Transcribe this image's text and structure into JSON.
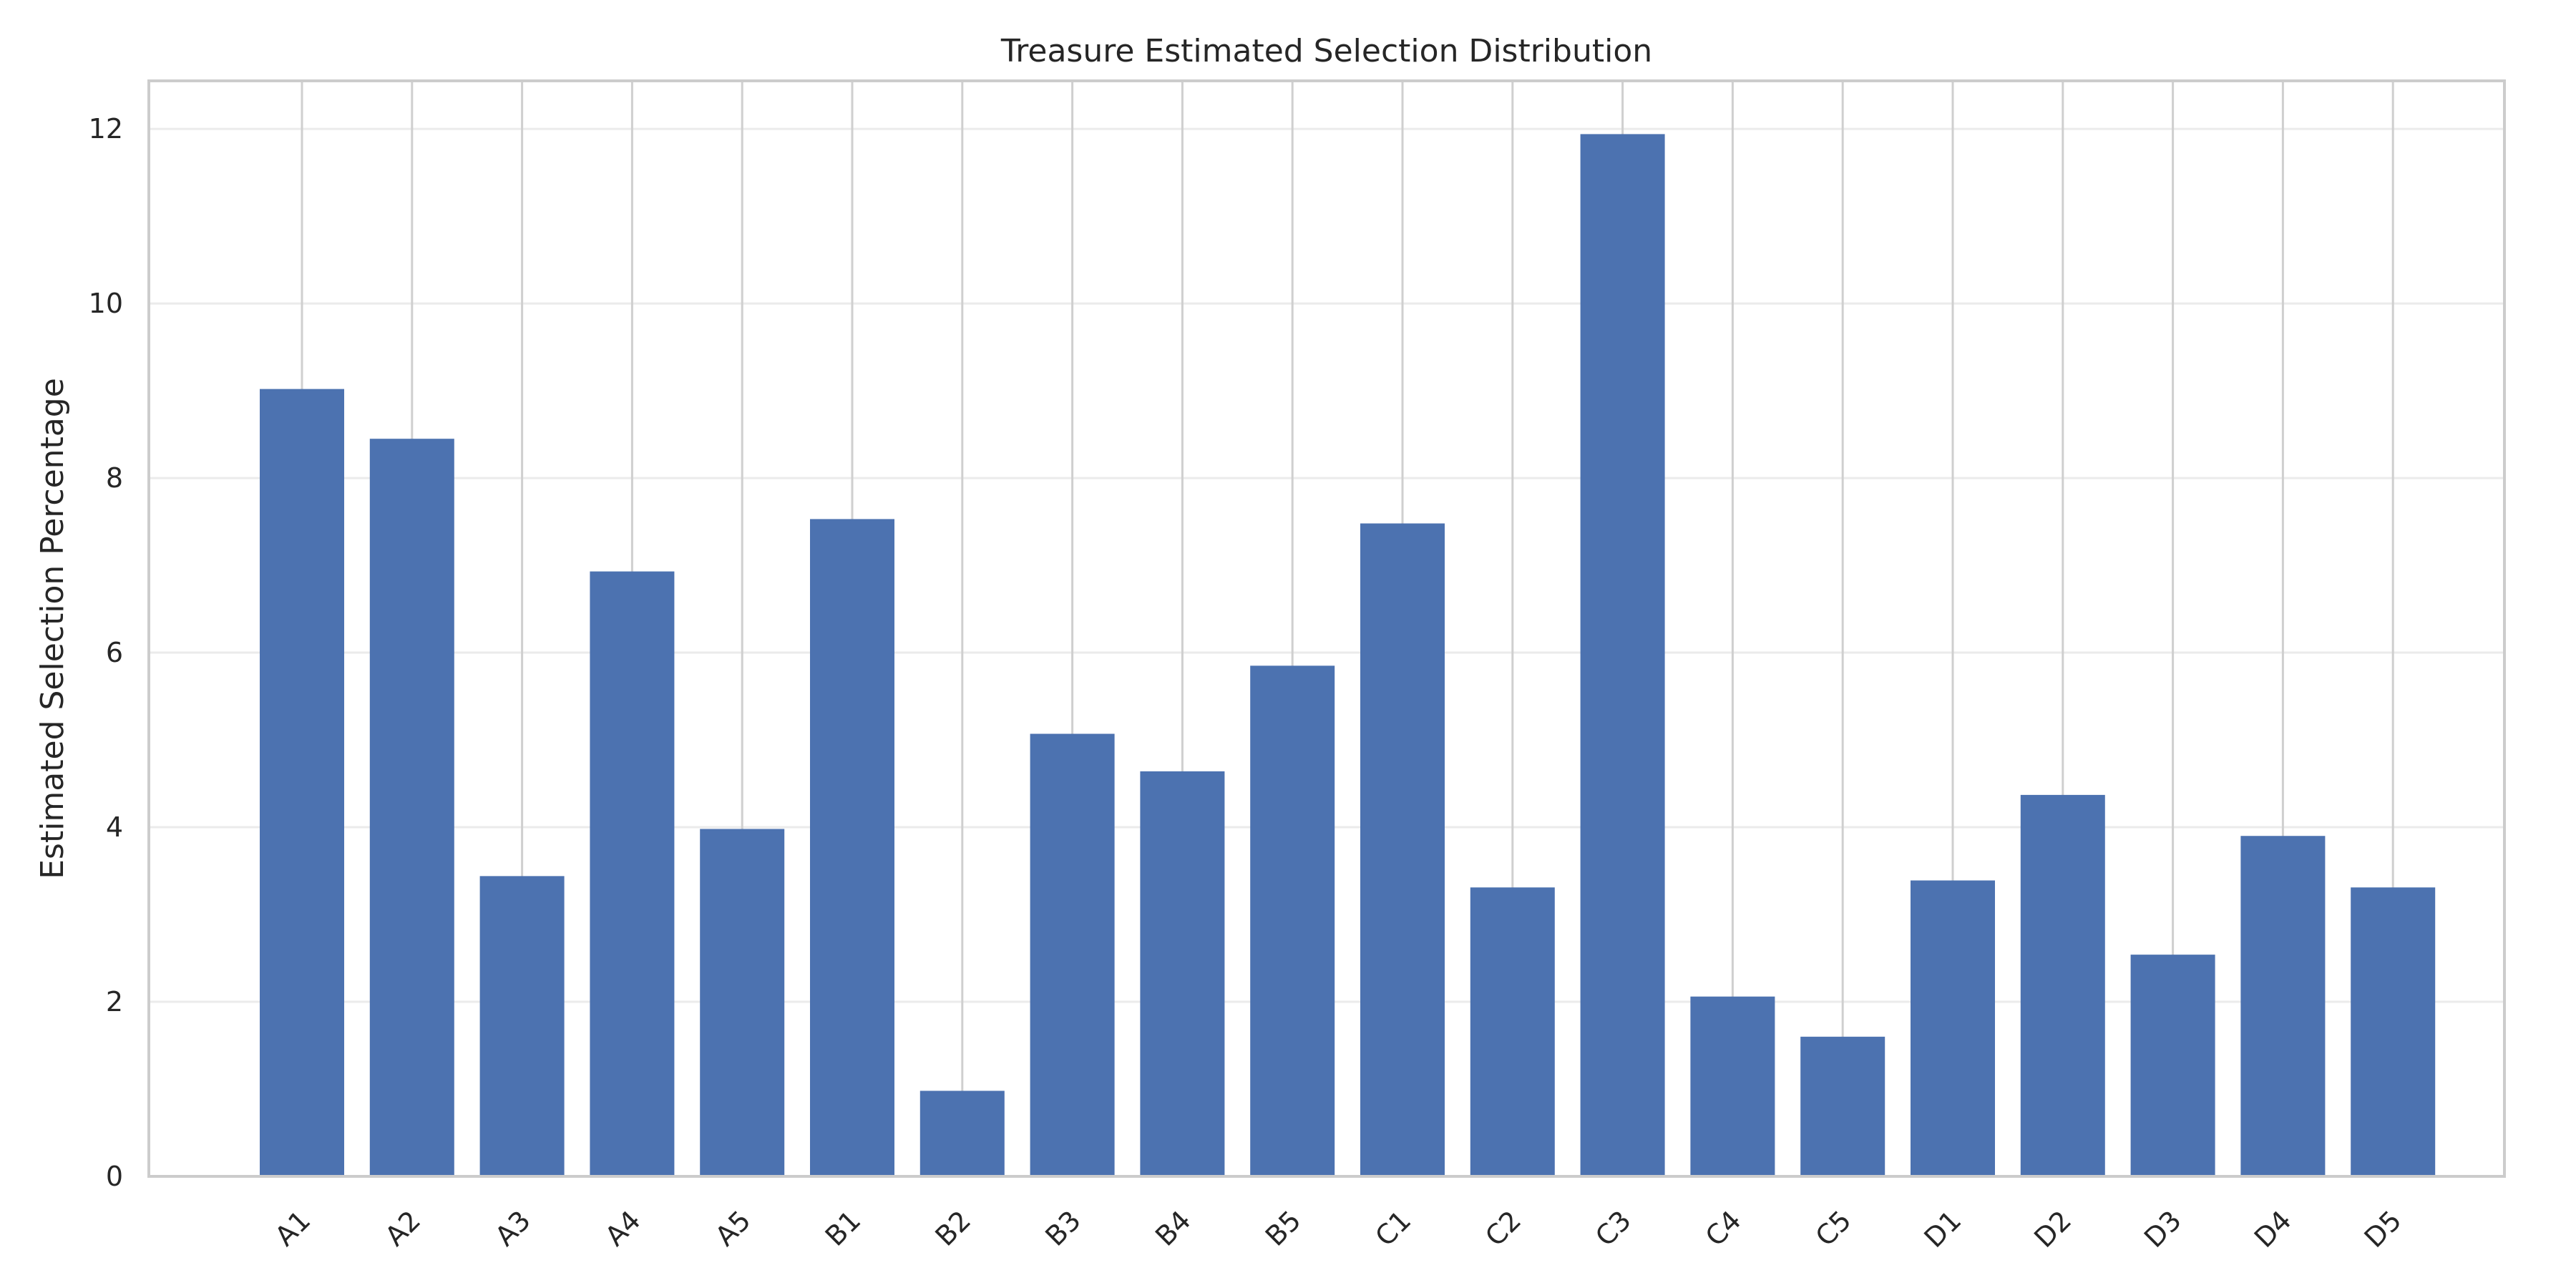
{
  "chart_data": {
    "type": "bar",
    "title": "Treasure Estimated Selection Distribution",
    "xlabel": "",
    "ylabel": "Estimated Selection Percentage",
    "categories": [
      "A1",
      "A2",
      "A3",
      "A4",
      "A5",
      "B1",
      "B2",
      "B3",
      "B4",
      "B5",
      "C1",
      "C2",
      "C3",
      "C4",
      "C5",
      "D1",
      "D2",
      "D3",
      "D4",
      "D5"
    ],
    "values": [
      9.02,
      8.45,
      3.44,
      6.93,
      3.98,
      7.53,
      0.98,
      5.07,
      4.64,
      5.85,
      7.48,
      3.31,
      11.94,
      2.06,
      1.6,
      3.39,
      4.37,
      2.54,
      3.9,
      3.31
    ],
    "ylim": [
      0,
      12.55
    ],
    "yticks": [
      "0",
      "2",
      "4",
      "6",
      "8",
      "10",
      "12"
    ],
    "xtick_rotation_deg": 45,
    "grid": true,
    "colors": {
      "bar": "#4c72b0",
      "grid_x": "#cfcfcf",
      "grid_y": "#ebebeb",
      "spine": "#cccccc",
      "text": "#262626"
    }
  }
}
